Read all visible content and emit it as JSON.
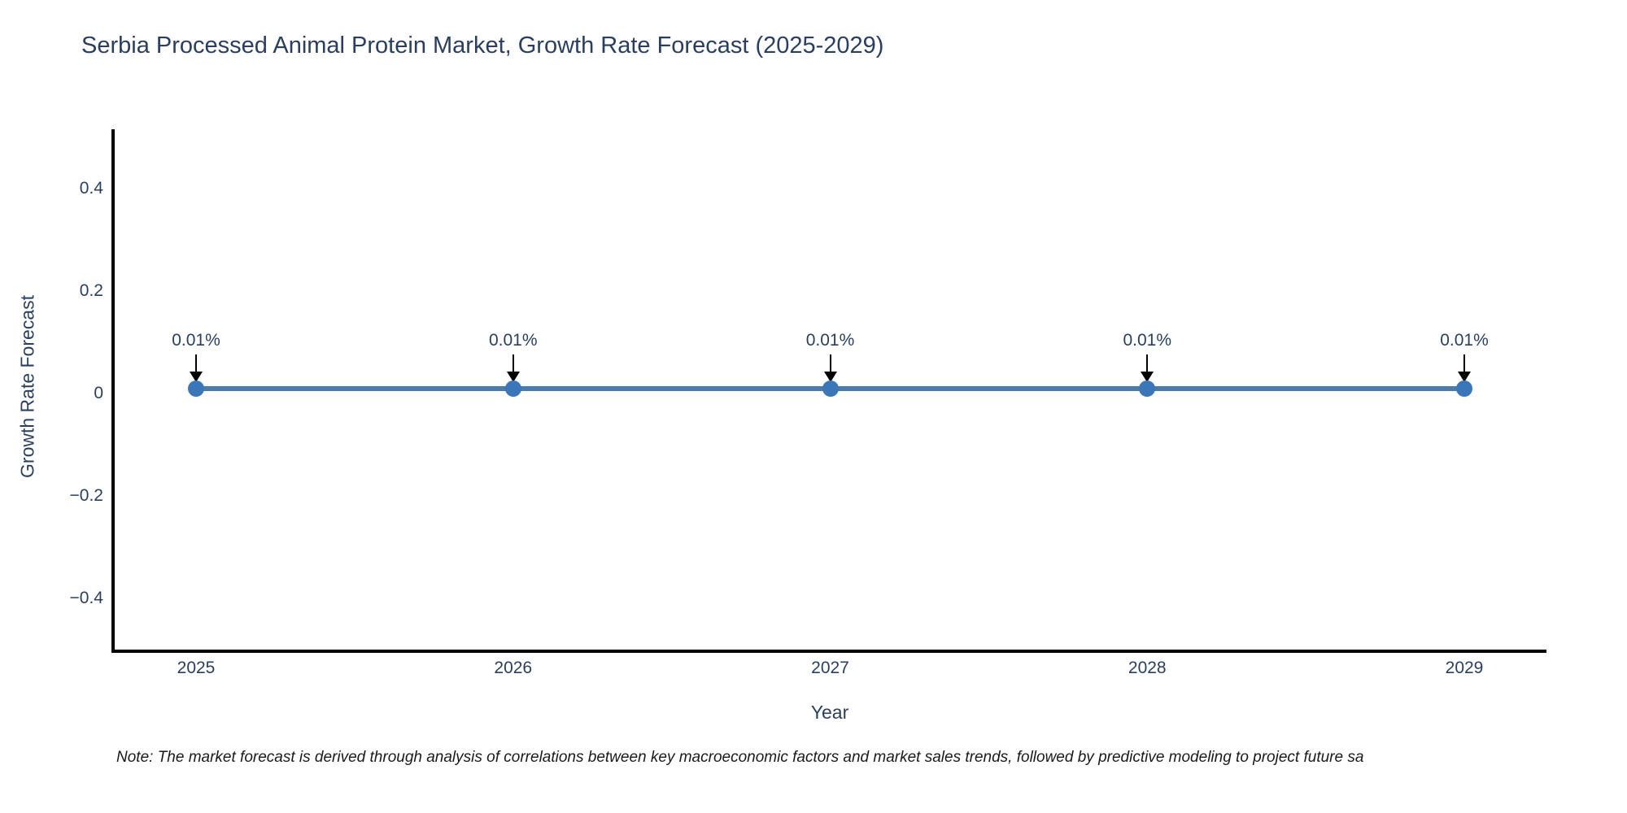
{
  "title": "Serbia Processed Animal Protein Market, Growth Rate Forecast (2025-2029)",
  "note": "Note: The market forecast is derived through analysis of correlations between key macroeconomic factors and market sales trends, followed by predictive modeling to project future sa",
  "chart_data": {
    "type": "line",
    "title": "Serbia Processed Animal Protein Market, Growth Rate Forecast (2025-2029)",
    "xlabel": "Year",
    "ylabel": "Growth Rate Forecast",
    "x": [
      2025,
      2026,
      2027,
      2028,
      2029
    ],
    "series": [
      {
        "name": "Growth Rate Forecast",
        "values": [
          0.01,
          0.01,
          0.01,
          0.01,
          0.01
        ],
        "unit": "%"
      }
    ],
    "point_labels": [
      "0.01%",
      "0.01%",
      "0.01%",
      "0.01%",
      "0.01%"
    ],
    "ytick_labels": [
      "0.4",
      "0.2",
      "0",
      "−0.2",
      "−0.4"
    ],
    "ytick_values": [
      0.4,
      0.2,
      0,
      -0.2,
      -0.4
    ],
    "ylim": [
      -0.51,
      0.52
    ],
    "grid": false,
    "legend": false,
    "marker_style": "circle-with-down-arrow-annotation",
    "colors": {
      "line": "#4A7CAB",
      "marker": "#3B76B8",
      "axis": "#000000",
      "text": "#2a3f5f",
      "annotation_arrow": "#000000",
      "background": "#ffffff"
    }
  }
}
